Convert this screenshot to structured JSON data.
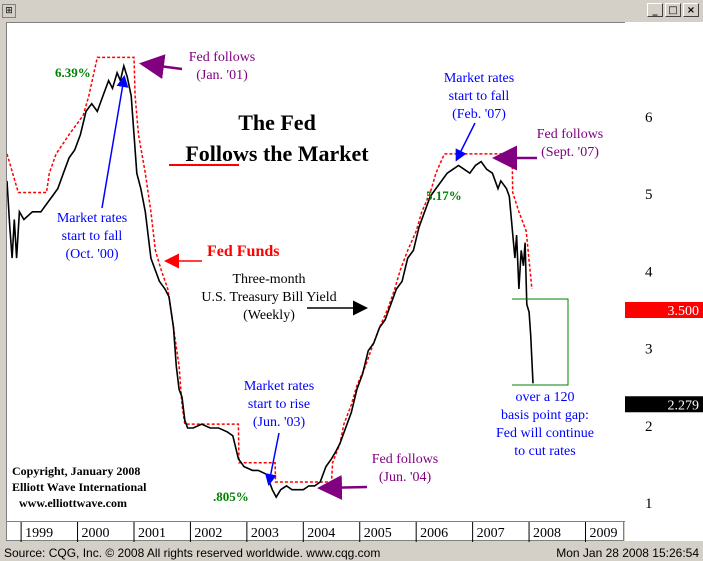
{
  "window": {
    "minimize": "_",
    "maximize": "□",
    "close": "×",
    "corner": "⊞"
  },
  "footer": {
    "source": "Source: CQG, Inc. © 2008 All rights reserved worldwide. www.cqg.com",
    "timestamp": "Mon Jan 28 2008 15:26:54"
  },
  "colors": {
    "fed": "#ff0000",
    "tbill": "#000000",
    "market_note": "#0000ff",
    "fed_note": "#800080",
    "gap": "#008000",
    "peak": "#008000"
  },
  "chart_data": {
    "type": "line",
    "title_line1": "The Fed",
    "title_line2": "Follows the Market",
    "x_tick_labels": [
      "1999",
      "2000",
      "2001",
      "2002",
      "2003",
      "2004",
      "2005",
      "2006",
      "2007",
      "2008",
      "2009"
    ],
    "y_tick_labels": [
      "1",
      "2",
      "3",
      "4",
      "5",
      "6"
    ],
    "ylim": [
      0.6,
      6.9
    ],
    "last_values": {
      "fed_funds": "3.500",
      "tbill": "2.279"
    },
    "series": [
      {
        "name": "Fed Funds",
        "style": "dotted-step",
        "points": [
          [
            1998.75,
            5.25
          ],
          [
            1998.95,
            4.75
          ],
          [
            1999.45,
            4.75
          ],
          [
            1999.5,
            5.0
          ],
          [
            1999.62,
            5.25
          ],
          [
            1999.85,
            5.5
          ],
          [
            2000.1,
            5.75
          ],
          [
            2000.2,
            6.0
          ],
          [
            2000.35,
            6.5
          ],
          [
            2001.0,
            6.5
          ],
          [
            2001.02,
            6.0
          ],
          [
            2001.08,
            5.5
          ],
          [
            2001.2,
            5.0
          ],
          [
            2001.3,
            4.5
          ],
          [
            2001.38,
            4.0
          ],
          [
            2001.48,
            3.75
          ],
          [
            2001.6,
            3.5
          ],
          [
            2001.7,
            3.0
          ],
          [
            2001.8,
            2.5
          ],
          [
            2001.85,
            2.0
          ],
          [
            2001.9,
            1.75
          ],
          [
            2002.85,
            1.75
          ],
          [
            2002.86,
            1.25
          ],
          [
            2003.5,
            1.25
          ],
          [
            2003.51,
            1.0
          ],
          [
            2004.5,
            1.0
          ],
          [
            2004.52,
            1.25
          ],
          [
            2004.65,
            1.5
          ],
          [
            2004.72,
            1.75
          ],
          [
            2004.85,
            2.0
          ],
          [
            2004.95,
            2.25
          ],
          [
            2005.1,
            2.5
          ],
          [
            2005.22,
            2.75
          ],
          [
            2005.35,
            3.0
          ],
          [
            2005.5,
            3.25
          ],
          [
            2005.62,
            3.5
          ],
          [
            2005.72,
            3.75
          ],
          [
            2005.85,
            4.0
          ],
          [
            2006.0,
            4.25
          ],
          [
            2006.1,
            4.5
          ],
          [
            2006.25,
            4.75
          ],
          [
            2006.35,
            5.0
          ],
          [
            2006.5,
            5.25
          ],
          [
            2007.7,
            5.25
          ],
          [
            2007.71,
            4.75
          ],
          [
            2007.82,
            4.5
          ],
          [
            2007.95,
            4.25
          ],
          [
            2008.05,
            3.5
          ]
        ]
      },
      {
        "name": "Three-month U.S. Treasury Bill Yield (Weekly)",
        "style": "solid",
        "points": [
          [
            1998.75,
            4.9
          ],
          [
            1998.8,
            4.3
          ],
          [
            1998.84,
            3.9
          ],
          [
            1998.88,
            4.4
          ],
          [
            1998.92,
            3.9
          ],
          [
            1998.97,
            4.5
          ],
          [
            1999.05,
            4.4
          ],
          [
            1999.2,
            4.5
          ],
          [
            1999.35,
            4.5
          ],
          [
            1999.45,
            4.6
          ],
          [
            1999.55,
            4.7
          ],
          [
            1999.65,
            4.8
          ],
          [
            1999.75,
            5.0
          ],
          [
            1999.85,
            5.2
          ],
          [
            1999.95,
            5.3
          ],
          [
            2000.05,
            5.5
          ],
          [
            2000.15,
            5.8
          ],
          [
            2000.25,
            5.9
          ],
          [
            2000.35,
            5.8
          ],
          [
            2000.45,
            6.0
          ],
          [
            2000.55,
            6.2
          ],
          [
            2000.62,
            6.1
          ],
          [
            2000.7,
            6.3
          ],
          [
            2000.76,
            6.2
          ],
          [
            2000.82,
            6.39
          ],
          [
            2000.88,
            6.25
          ],
          [
            2000.95,
            6.0
          ],
          [
            2001.0,
            5.5
          ],
          [
            2001.05,
            5.0
          ],
          [
            2001.12,
            4.8
          ],
          [
            2001.2,
            4.5
          ],
          [
            2001.3,
            3.9
          ],
          [
            2001.35,
            3.8
          ],
          [
            2001.45,
            3.6
          ],
          [
            2001.55,
            3.5
          ],
          [
            2001.62,
            3.4
          ],
          [
            2001.7,
            3.0
          ],
          [
            2001.75,
            2.5
          ],
          [
            2001.8,
            2.2
          ],
          [
            2001.85,
            2.1
          ],
          [
            2001.9,
            1.8
          ],
          [
            2001.95,
            1.7
          ],
          [
            2002.05,
            1.7
          ],
          [
            2002.2,
            1.75
          ],
          [
            2002.35,
            1.7
          ],
          [
            2002.5,
            1.7
          ],
          [
            2002.65,
            1.65
          ],
          [
            2002.75,
            1.6
          ],
          [
            2002.85,
            1.3
          ],
          [
            2002.95,
            1.2
          ],
          [
            2003.1,
            1.15
          ],
          [
            2003.2,
            1.15
          ],
          [
            2003.35,
            1.1
          ],
          [
            2003.45,
            0.9
          ],
          [
            2003.52,
            0.805
          ],
          [
            2003.6,
            0.9
          ],
          [
            2003.7,
            0.95
          ],
          [
            2003.8,
            0.9
          ],
          [
            2003.9,
            0.9
          ],
          [
            2004.0,
            0.9
          ],
          [
            2004.1,
            0.95
          ],
          [
            2004.2,
            0.95
          ],
          [
            2004.3,
            1.0
          ],
          [
            2004.4,
            1.2
          ],
          [
            2004.5,
            1.3
          ],
          [
            2004.58,
            1.4
          ],
          [
            2004.65,
            1.5
          ],
          [
            2004.75,
            1.7
          ],
          [
            2004.85,
            1.9
          ],
          [
            2004.95,
            2.2
          ],
          [
            2005.05,
            2.4
          ],
          [
            2005.15,
            2.7
          ],
          [
            2005.25,
            2.8
          ],
          [
            2005.35,
            3.0
          ],
          [
            2005.45,
            3.1
          ],
          [
            2005.55,
            3.3
          ],
          [
            2005.65,
            3.5
          ],
          [
            2005.75,
            3.6
          ],
          [
            2005.85,
            3.9
          ],
          [
            2005.95,
            4.0
          ],
          [
            2006.05,
            4.3
          ],
          [
            2006.15,
            4.5
          ],
          [
            2006.25,
            4.7
          ],
          [
            2006.35,
            4.8
          ],
          [
            2006.45,
            4.9
          ],
          [
            2006.55,
            5.0
          ],
          [
            2006.65,
            5.05
          ],
          [
            2006.75,
            5.1
          ],
          [
            2006.85,
            5.05
          ],
          [
            2006.95,
            5.0
          ],
          [
            2007.05,
            5.1
          ],
          [
            2007.15,
            5.15
          ],
          [
            2007.25,
            5.05
          ],
          [
            2007.35,
            5.0
          ],
          [
            2007.45,
            4.8
          ],
          [
            2007.5,
            4.9
          ],
          [
            2007.55,
            4.85
          ],
          [
            2007.6,
            4.8
          ],
          [
            2007.65,
            4.7
          ],
          [
            2007.7,
            4.3
          ],
          [
            2007.75,
            3.9
          ],
          [
            2007.78,
            4.2
          ],
          [
            2007.82,
            3.5
          ],
          [
            2007.86,
            4.0
          ],
          [
            2007.9,
            3.8
          ],
          [
            2007.93,
            4.1
          ],
          [
            2007.96,
            3.3
          ],
          [
            2008.0,
            3.2
          ],
          [
            2008.03,
            2.9
          ],
          [
            2008.07,
            2.279
          ]
        ]
      }
    ],
    "annotations": {
      "fed_follows_jan01": [
        "Fed follows",
        "(Jan. '01)"
      ],
      "peak_2000": "6.39%",
      "market_fall_oct00": [
        "Market rates",
        "start to fall",
        "(Oct. '00)"
      ],
      "fed_funds_label": "Fed Funds",
      "tbill_label": [
        "Three-month",
        "U.S. Treasury Bill Yield",
        "(Weekly)"
      ],
      "market_rise_jun03": [
        "Market rates",
        "start to rise",
        "(Jun. '03)"
      ],
      "low_2003": ".805%",
      "fed_follows_jun04": [
        "Fed follows",
        "(Jun. '04)"
      ],
      "market_fall_feb07": [
        "Market rates",
        "start to fall",
        "(Feb. '07)"
      ],
      "peak_2007": "5.17%",
      "fed_follows_sept07": [
        "Fed follows",
        "(Sept. '07)"
      ],
      "gap_note": [
        "over a 120",
        "basis point gap:",
        "Fed will continue",
        "to cut rates"
      ],
      "copyright": [
        "Copyright, January 2008",
        "Elliott Wave International",
        "www.elliottwave.com"
      ]
    }
  }
}
